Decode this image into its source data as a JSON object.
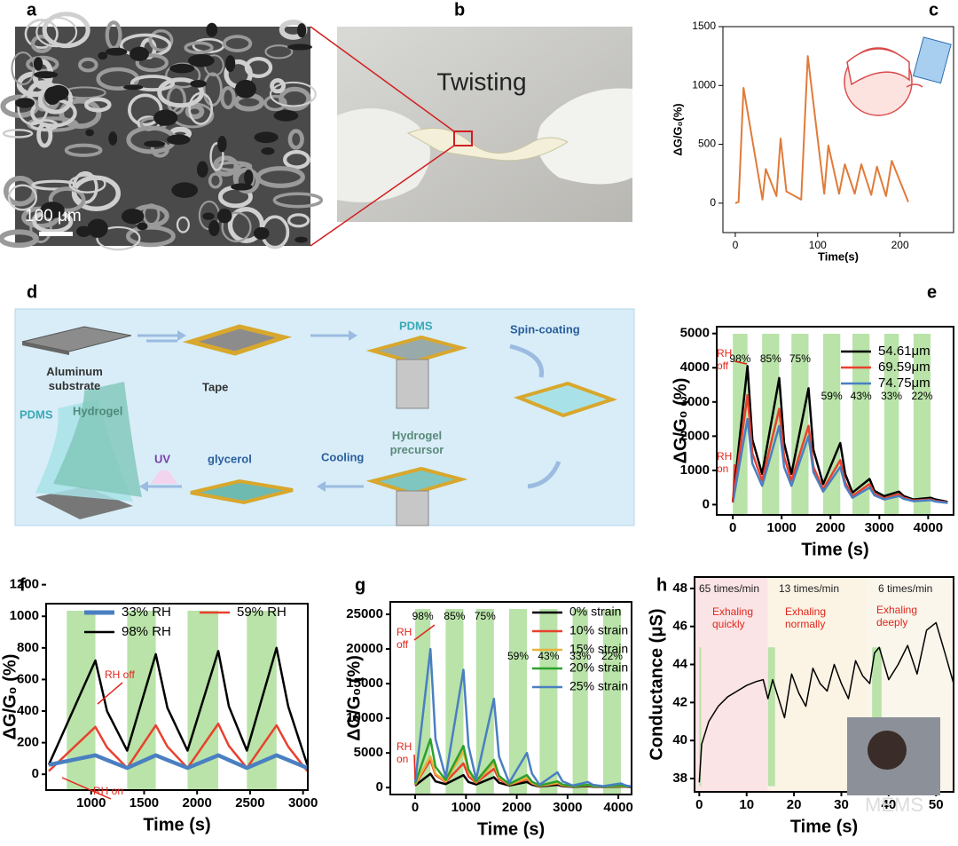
{
  "panels": {
    "a": {
      "label": "a",
      "scale_bar": "100 μm"
    },
    "b": {
      "label": "b",
      "caption": "Twisting"
    },
    "d": {
      "label": "d",
      "substrate": [
        "Aluminum",
        "substrate"
      ],
      "tape": "Tape",
      "pdms_drop": "PDMS",
      "spin": "Spin-coating",
      "precursor": [
        "Hydrogel",
        "precursor"
      ],
      "cooling": "Cooling",
      "glycerol": "glycerol",
      "uv": "UV",
      "pdms_layer": "PDMS",
      "hydrogel_layer": "Hydrogel"
    }
  },
  "watermark": "MEMS",
  "chart_data": [
    {
      "type": "line",
      "panel_label": "c",
      "x_label": "Time(s)",
      "y_label": "ΔG/G₀(%)",
      "color": "#e07b39",
      "x": [
        0,
        4,
        10,
        33,
        37,
        50,
        55,
        62,
        80,
        88,
        108,
        113,
        126,
        133,
        145,
        153,
        165,
        172,
        183,
        190,
        210
      ],
      "values": [
        0,
        10,
        980,
        30,
        290,
        60,
        550,
        100,
        30,
        1250,
        80,
        490,
        80,
        330,
        80,
        330,
        70,
        310,
        60,
        360,
        10
      ],
      "xlim": [
        -15,
        265
      ],
      "ylim": [
        -250,
        1500
      ],
      "xticks": [
        0,
        100,
        200
      ],
      "yticks": [
        0,
        500,
        1000,
        1500
      ]
    },
    {
      "type": "line",
      "panel_label": "e",
      "x_label": "Time (s)",
      "y_label": "ΔG/G₀ (%)",
      "shade_color": "#b9e3a8",
      "legend": "upper right",
      "annotations": [
        [
          "RH",
          "off"
        ],
        [
          "RH",
          "on"
        ]
      ],
      "shaded_regions": [
        {
          "x": [
            0,
            300
          ],
          "label": "98%"
        },
        {
          "x": [
            600,
            950
          ],
          "label": "85%"
        },
        {
          "x": [
            1200,
            1550
          ],
          "label": "75%"
        },
        {
          "x": [
            1850,
            2200
          ],
          "label": "59%"
        },
        {
          "x": [
            2450,
            2800
          ],
          "label": "43%"
        },
        {
          "x": [
            3100,
            3400
          ],
          "label": "33%"
        },
        {
          "x": [
            3700,
            4050
          ],
          "label": "22%"
        }
      ],
      "x": [
        0,
        300,
        400,
        600,
        950,
        1050,
        1200,
        1550,
        1650,
        1850,
        2200,
        2300,
        2450,
        2800,
        2900,
        3100,
        3400,
        3500,
        3700,
        4050,
        4150,
        4400
      ],
      "series": [
        {
          "name": "54.61μm",
          "color": "#000000",
          "values": [
            100,
            4050,
            1900,
            900,
            3700,
            1800,
            900,
            3400,
            1600,
            600,
            1800,
            900,
            350,
            750,
            400,
            250,
            380,
            250,
            150,
            200,
            150,
            80
          ]
        },
        {
          "name": "69.59μm",
          "color": "#e8412e",
          "values": [
            80,
            3200,
            1500,
            700,
            2800,
            1400,
            700,
            2300,
            1100,
            450,
            1300,
            650,
            250,
            600,
            320,
            180,
            300,
            200,
            120,
            150,
            110,
            60
          ]
        },
        {
          "name": "74.75μm",
          "color": "#4a7fc1",
          "values": [
            60,
            2500,
            1200,
            550,
            2300,
            1100,
            550,
            2000,
            950,
            380,
            1100,
            550,
            200,
            500,
            270,
            150,
            250,
            170,
            100,
            130,
            90,
            50
          ]
        }
      ],
      "xlim": [
        -330,
        4520
      ],
      "ylim": [
        -300,
        5200
      ],
      "xticks": [
        0,
        1000,
        2000,
        3000,
        4000
      ],
      "yticks": [
        0,
        1000,
        2000,
        3000,
        4000,
        5000
      ]
    },
    {
      "type": "line",
      "panel_label": "f",
      "x_label": "Time (s)",
      "y_label": "ΔG/G₀ (%)",
      "shade_color": "#b9e3a8",
      "legend": "upper left",
      "annotations": [
        [
          "RH off"
        ],
        [
          "RH on"
        ]
      ],
      "shaded_regions": [
        {
          "x": [
            770,
            1040
          ]
        },
        {
          "x": [
            1340,
            1610
          ]
        },
        {
          "x": [
            1910,
            2200
          ]
        },
        {
          "x": [
            2470,
            2750
          ]
        }
      ],
      "x": [
        600,
        1040,
        1150,
        1340,
        1610,
        1720,
        1910,
        2200,
        2300,
        2470,
        2750,
        2860,
        3040
      ],
      "series": [
        {
          "name": "33% RH",
          "color": "#4a7fc1",
          "values": [
            60,
            120,
            90,
            40,
            120,
            90,
            40,
            120,
            90,
            40,
            120,
            90,
            40
          ]
        },
        {
          "name": "59% RH",
          "color": "#e8412e",
          "values": [
            20,
            300,
            170,
            40,
            310,
            175,
            40,
            320,
            180,
            40,
            310,
            175,
            20
          ]
        },
        {
          "name": "98% RH",
          "color": "#000000",
          "values": [
            60,
            720,
            400,
            150,
            760,
            420,
            150,
            780,
            430,
            150,
            800,
            430,
            60
          ]
        }
      ],
      "xlim": [
        575,
        3045
      ],
      "ylim": [
        -100,
        1080
      ],
      "xticks": [
        1000,
        1500,
        2000,
        2500,
        3000
      ],
      "yticks": [
        0,
        200,
        400,
        600,
        800,
        1000,
        1200
      ]
    },
    {
      "type": "line",
      "panel_label": "g",
      "x_label": "Time (s)",
      "y_label": "ΔG/G₀ (%)",
      "shade_color": "#b9e3a8",
      "legend": "upper right",
      "annotations": [
        [
          "RH",
          "off"
        ],
        [
          "RH",
          "on"
        ]
      ],
      "shaded_regions": [
        {
          "x": [
            0,
            300
          ],
          "label": "98%"
        },
        {
          "x": [
            600,
            950
          ],
          "label": "85%"
        },
        {
          "x": [
            1200,
            1550
          ],
          "label": "75%"
        },
        {
          "x": [
            1850,
            2200
          ],
          "label": "59%"
        },
        {
          "x": [
            2450,
            2800
          ],
          "label": "43%"
        },
        {
          "x": [
            3100,
            3400
          ],
          "label": "33%"
        },
        {
          "x": [
            3700,
            4050
          ],
          "label": "22%"
        }
      ],
      "x": [
        0,
        300,
        400,
        600,
        950,
        1050,
        1200,
        1550,
        1650,
        1850,
        2200,
        2300,
        2450,
        2800,
        2900,
        3100,
        3400,
        3500,
        3700,
        4050,
        4150,
        4250
      ],
      "series": [
        {
          "name": "0% strain",
          "color": "#000000",
          "values": [
            300,
            2000,
            900,
            500,
            1800,
            800,
            450,
            1500,
            700,
            300,
            800,
            400,
            150,
            400,
            200,
            100,
            200,
            120,
            80,
            150,
            100,
            60
          ]
        },
        {
          "name": "10% strain",
          "color": "#e8412e",
          "values": [
            400,
            4000,
            1800,
            800,
            3500,
            1600,
            700,
            2700,
            1200,
            400,
            1200,
            600,
            200,
            600,
            300,
            150,
            300,
            180,
            100,
            200,
            120,
            80
          ]
        },
        {
          "name": "15% strain",
          "color": "#e8b23a",
          "values": [
            500,
            4500,
            2000,
            900,
            5200,
            2300,
            800,
            3500,
            1500,
            450,
            1400,
            700,
            250,
            700,
            350,
            180,
            350,
            200,
            120,
            250,
            150,
            90
          ]
        },
        {
          "name": "20% strain",
          "color": "#2ca02c",
          "values": [
            600,
            7000,
            3000,
            1100,
            6000,
            2600,
            900,
            4000,
            1700,
            500,
            1800,
            850,
            300,
            900,
            450,
            200,
            400,
            250,
            150,
            300,
            180,
            100
          ]
        },
        {
          "name": "25% strain",
          "color": "#4a7fc1",
          "values": [
            800,
            20000,
            7000,
            1500,
            17000,
            6000,
            1200,
            12800,
            4500,
            700,
            5000,
            2000,
            400,
            2200,
            900,
            300,
            800,
            400,
            200,
            600,
            300,
            150
          ]
        }
      ],
      "xlim": [
        -490,
        4260
      ],
      "ylim": [
        -1000,
        26800
      ],
      "xticks": [
        0,
        1000,
        2000,
        3000,
        4000
      ],
      "yticks": [
        0,
        5000,
        10000,
        15000,
        20000,
        25000
      ]
    },
    {
      "type": "line",
      "panel_label": "h",
      "x_label": "Time (s)",
      "y_label": "Conductance (μS)",
      "shade_color": "#b9e3a8",
      "color": "#000000",
      "background_regions": [
        {
          "x": [
            -1,
            14.5
          ],
          "color": "#fbe4e6"
        },
        {
          "x": [
            14.5,
            35.5
          ],
          "color": "#fbf3e4"
        },
        {
          "x": [
            35.5,
            53.7
          ],
          "color": "#faf6ec"
        }
      ],
      "shaded_regions": [
        {
          "x": [
            0,
            0.4
          ]
        },
        {
          "x": [
            14.5,
            16
          ]
        },
        {
          "x": [
            36.5,
            38.5
          ]
        }
      ],
      "annotations": [
        [
          "65 times/min"
        ],
        [
          "13 times/min"
        ],
        [
          "6 times/min"
        ],
        [
          "Exhaling",
          "quickly"
        ],
        [
          "Exhaling",
          "normally"
        ],
        [
          "Exhaling",
          "deeply"
        ]
      ],
      "x": [
        0,
        0.5,
        2,
        4,
        6,
        8,
        10,
        12,
        13.5,
        14.5,
        15.5,
        17,
        18,
        19.5,
        21,
        22.5,
        24,
        25.5,
        27,
        28.5,
        30,
        31.5,
        33,
        34.5,
        36,
        37,
        38,
        40,
        42,
        44,
        46,
        48,
        50,
        52,
        53.7
      ],
      "values": [
        37.8,
        39.8,
        41,
        41.8,
        42.3,
        42.6,
        42.9,
        43.1,
        43.2,
        42.2,
        43.2,
        42.0,
        41.2,
        43.5,
        42.5,
        41.8,
        43.8,
        43.0,
        42.6,
        44.0,
        43.0,
        42.2,
        44.2,
        43.4,
        43.0,
        44.6,
        44.9,
        43.2,
        44.0,
        45.0,
        43.5,
        45.8,
        46.2,
        44.5,
        43.0
      ],
      "xlim": [
        -1,
        53.7
      ],
      "ylim": [
        37.3,
        48.6
      ],
      "xticks": [
        0,
        10,
        20,
        30,
        40,
        50
      ],
      "yticks": [
        38,
        40,
        42,
        44,
        46,
        48
      ]
    }
  ]
}
